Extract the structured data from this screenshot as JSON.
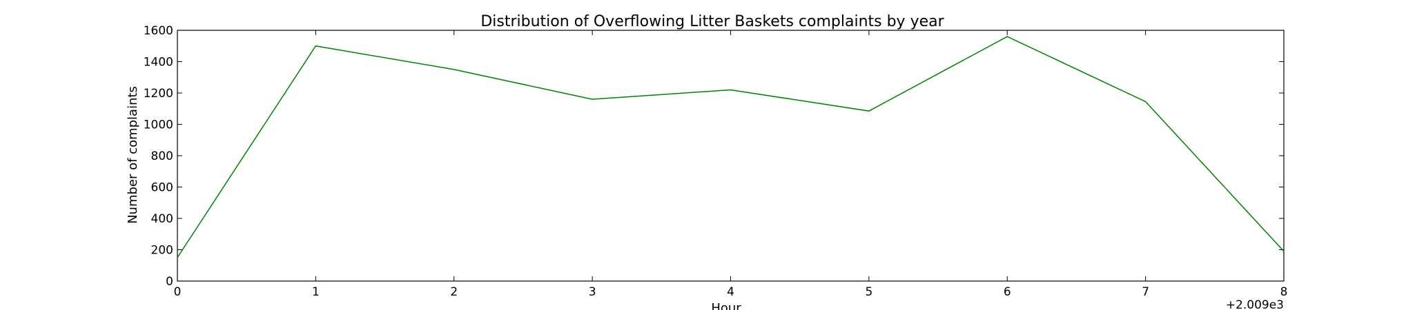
{
  "chart_data": {
    "type": "line",
    "title": "Distribution of  Overflowing Litter Baskets complaints by year",
    "xlabel": "Hour",
    "ylabel": "Number of complaints",
    "x_offset_label": "+2.009e3",
    "xlim": [
      0,
      8
    ],
    "ylim": [
      0,
      1600
    ],
    "xticks": [
      0,
      1,
      2,
      3,
      4,
      5,
      6,
      7,
      8
    ],
    "yticks": [
      0,
      200,
      400,
      600,
      800,
      1000,
      1200,
      1400,
      1600
    ],
    "grid": false,
    "legend": "none",
    "line_color": "#008000",
    "series": [
      {
        "x": [
          0,
          1,
          2,
          3,
          4,
          5,
          6,
          7,
          8
        ],
        "y": [
          150,
          1500,
          1350,
          1160,
          1220,
          1085,
          1560,
          1145,
          190
        ]
      }
    ]
  }
}
